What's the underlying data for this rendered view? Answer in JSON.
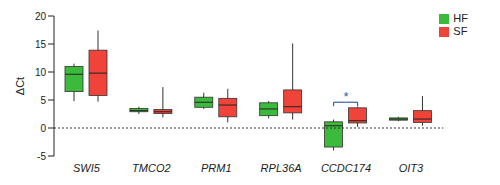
{
  "chart_data": {
    "type": "box",
    "y_label": "ΔCt",
    "categories": [
      "SWI5",
      "TMCO2",
      "PRM1",
      "RPL36A",
      "CCDC174",
      "OIT3"
    ],
    "series": [
      {
        "name": "HF",
        "color": "#3cba3c",
        "values": [
          [
            4.8,
            6.5,
            9.6,
            11.0,
            11.5
          ],
          [
            2.5,
            2.9,
            3.1,
            3.5,
            3.8
          ],
          [
            3.4,
            3.7,
            4.6,
            5.5,
            6.3
          ],
          [
            1.7,
            2.2,
            3.4,
            4.5,
            4.8
          ],
          [
            -4.0,
            -3.4,
            0.4,
            1.1,
            1.5
          ],
          [
            1.2,
            1.4,
            1.6,
            1.8,
            2.0
          ]
        ]
      },
      {
        "name": "SF",
        "color": "#f0443a",
        "values": [
          [
            4.7,
            5.8,
            9.8,
            13.9,
            17.4
          ],
          [
            1.9,
            2.6,
            2.9,
            3.3,
            7.3
          ],
          [
            1.0,
            2.0,
            4.1,
            5.3,
            7.0
          ],
          [
            1.5,
            2.7,
            3.8,
            6.8,
            15.1
          ],
          [
            0.2,
            0.9,
            1.3,
            3.6,
            3.8
          ],
          [
            0.4,
            1.0,
            1.6,
            3.1,
            5.7
          ]
        ]
      }
    ],
    "ylim": [
      -5,
      20
    ],
    "yticks": [
      -5,
      0,
      5,
      10,
      15,
      20
    ],
    "reference_line": 0,
    "annotations": [
      {
        "text": "*",
        "category": "CCDC174",
        "y": 4.6
      }
    ],
    "legend": "upper right"
  }
}
